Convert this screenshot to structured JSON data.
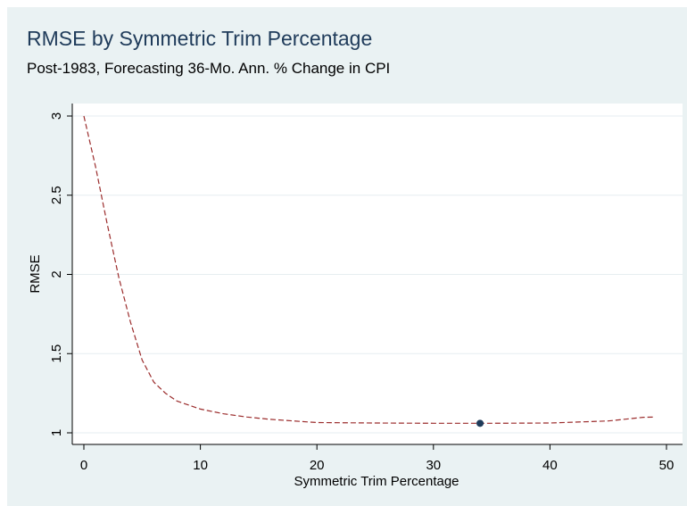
{
  "chart_data": {
    "type": "line",
    "title": "RMSE by Symmetric Trim Percentage",
    "subtitle": "Post-1983, Forecasting 36-Mo. Ann. % Change in CPI",
    "xlabel": "Symmetric Trim Percentage",
    "ylabel": "RMSE",
    "xlim": [
      0,
      50
    ],
    "ylim": [
      1,
      3
    ],
    "xticks": [
      0,
      10,
      20,
      30,
      40,
      50
    ],
    "xtick_labels": [
      "0",
      "10",
      "20",
      "30",
      "40",
      "50"
    ],
    "yticks": [
      1,
      1.5,
      2,
      2.5,
      3
    ],
    "ytick_labels": [
      "1",
      "1.5",
      "2",
      "2.5",
      "3"
    ],
    "grid": true,
    "series": [
      {
        "style": "dashed",
        "color": "#9b2c2c",
        "x": [
          0,
          1,
          2,
          3,
          4,
          5,
          6,
          7,
          8,
          10,
          12,
          14,
          16,
          18,
          20,
          25,
          30,
          35,
          40,
          45,
          48,
          49
        ],
        "y": [
          3.0,
          2.68,
          2.32,
          1.98,
          1.7,
          1.46,
          1.32,
          1.25,
          1.2,
          1.15,
          1.12,
          1.1,
          1.085,
          1.075,
          1.065,
          1.062,
          1.06,
          1.06,
          1.062,
          1.075,
          1.098,
          1.1
        ]
      }
    ],
    "highlight_point": {
      "x": 34,
      "y": 1.06,
      "color": "#1f3b5a"
    }
  }
}
